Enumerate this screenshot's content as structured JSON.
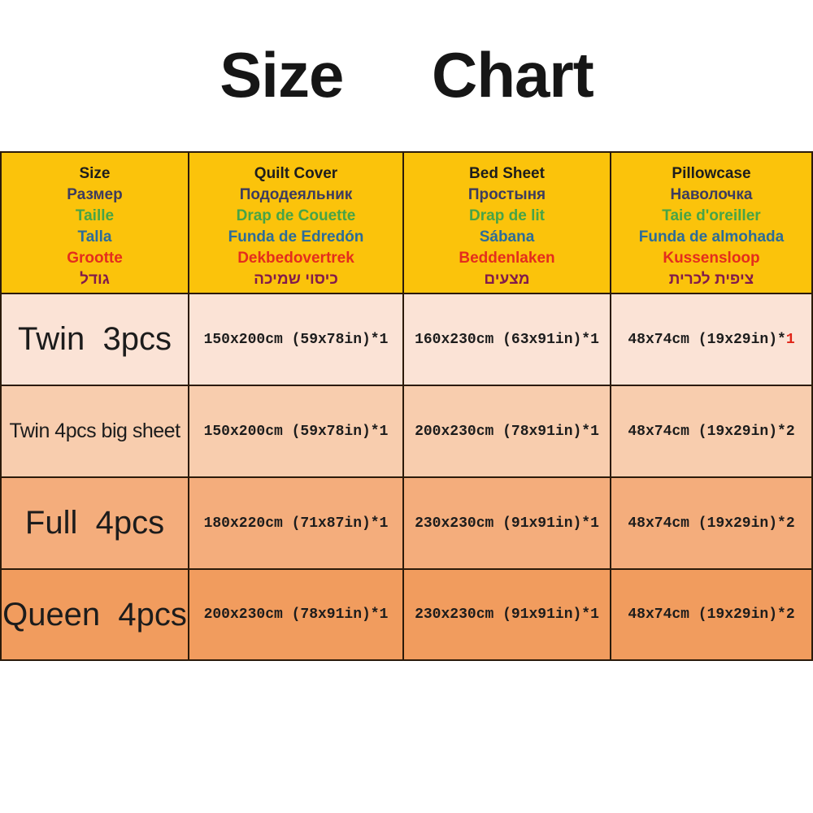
{
  "title": "Size Chart",
  "colors": {
    "header_bg": "#fbc30b",
    "border": "#2b1a0a",
    "title_text": "#161616",
    "body_text": "#1c1c1c",
    "qty_red": "#e02417",
    "lang_colors": {
      "en": "#1d1d1d",
      "ru": "#3d3c5f",
      "fr": "#47a447",
      "es": "#2c6c99",
      "nl": "#e42d1d",
      "he": "#821b4b"
    }
  },
  "table": {
    "header": [
      {
        "lines": {
          "en": "Size",
          "ru": "Размер",
          "fr": "Taille",
          "es": "Talla",
          "nl": "Grootte",
          "he": "גודל"
        }
      },
      {
        "lines": {
          "en": "Quilt Cover",
          "ru": "Пододеяльник",
          "fr": "Drap de Couette",
          "es": "Funda de Edredón",
          "nl": "Dekbedovertrek",
          "he": "כיסוי שמיכה"
        }
      },
      {
        "lines": {
          "en": "Bed Sheet",
          "ru": "Простыня",
          "fr": "Drap de lit",
          "es": "Sábana",
          "nl": "Beddenlaken",
          "he": "מצעים"
        }
      },
      {
        "lines": {
          "en": "Pillowcase",
          "ru": "Наволочка",
          "fr": "Taie d'oreiller",
          "es": "Funda de almohada",
          "nl": "Kussensloop",
          "he": "ציפית לכרית"
        }
      }
    ],
    "rows": [
      {
        "bg": "#fbe3d6",
        "size_label": "Twin  3pcs",
        "quilt_cover": "150x200cm (59x78in)*1",
        "bed_sheet": "160x230cm (63x91in)*1",
        "pillowcase_size": "48x74cm (19x29in)*",
        "pillowcase_qty": "1",
        "qty_color": "#e02417"
      },
      {
        "bg": "#f8cdae",
        "size_label": "Twin 4pcs big sheet",
        "quilt_cover": "150x200cm (59x78in)*1",
        "bed_sheet": "200x230cm (78x91in)*1",
        "pillowcase_size": "48x74cm (19x29in)*",
        "pillowcase_qty": "2",
        "qty_color": "#1c1c1c"
      },
      {
        "bg": "#f4ad7c",
        "size_label": "Full  4pcs",
        "quilt_cover": "180x220cm (71x87in)*1",
        "bed_sheet": "230x230cm (91x91in)*1",
        "pillowcase_size": "48x74cm (19x29in)*",
        "pillowcase_qty": "2",
        "qty_color": "#1c1c1c"
      },
      {
        "bg": "#f19c5e",
        "size_label": "Queen  4pcs",
        "quilt_cover": "200x230cm (78x91in)*1",
        "bed_sheet": "230x230cm (91x91in)*1",
        "pillowcase_size": "48x74cm (19x29in)*",
        "pillowcase_qty": "2",
        "qty_color": "#1c1c1c"
      }
    ]
  },
  "chart_data": {
    "type": "table",
    "title": "Size Chart",
    "columns": [
      "Size",
      "Quilt Cover",
      "Bed Sheet",
      "Pillowcase"
    ],
    "rows": [
      [
        "Twin 3pcs",
        "150x200cm (59x78in)*1",
        "160x230cm (63x91in)*1",
        "48x74cm (19x29in)*1"
      ],
      [
        "Twin 4pcs big sheet",
        "150x200cm (59x78in)*1",
        "200x230cm (78x91in)*1",
        "48x74cm (19x29in)*2"
      ],
      [
        "Full 4pcs",
        "180x220cm (71x87in)*1",
        "230x230cm (91x91in)*1",
        "48x74cm (19x29in)*2"
      ],
      [
        "Queen 4pcs",
        "200x230cm (78x91in)*1",
        "230x230cm (91x91in)*1",
        "48x74cm (19x29in)*2"
      ]
    ]
  }
}
